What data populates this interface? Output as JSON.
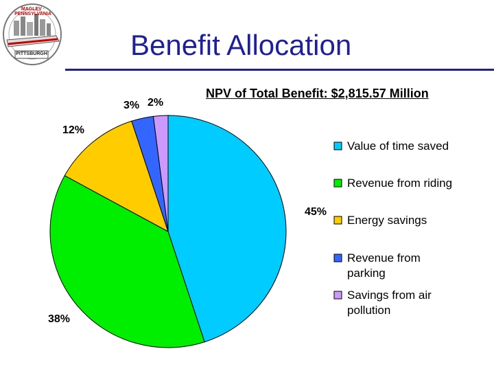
{
  "slide": {
    "title": "Benefit Allocation",
    "subtitle": "NPV of Total Benefit: $2,815.57 Million"
  },
  "logo": {
    "text_top": "MAGLEV · PENNSYLVANIA",
    "text_bottom": "PITTSBURGH"
  },
  "colors": {
    "title": "#1f1f9a",
    "rule": "#1f1f9a"
  },
  "chart_data": {
    "type": "pie",
    "legend_position": "right",
    "series": [
      {
        "name": "Value of time saved",
        "legend_lines": [
          "Value of time saved"
        ],
        "value": 45,
        "label": "45%",
        "color": "#00ccff"
      },
      {
        "name": "Revenue from riding",
        "legend_lines": [
          "Revenue from riding"
        ],
        "value": 38,
        "label": "38%",
        "color": "#00ee00"
      },
      {
        "name": "Energy savings",
        "legend_lines": [
          "Energy savings"
        ],
        "value": 12,
        "label": "12%",
        "color": "#ffcc00"
      },
      {
        "name": "Revenue from parking",
        "legend_lines": [
          "Revenue from",
          "parking"
        ],
        "value": 3,
        "label": "3%",
        "color": "#3366ff"
      },
      {
        "name": "Savings from air pollution",
        "legend_lines": [
          "Savings from air",
          "pollution"
        ],
        "value": 2,
        "label": "2%",
        "color": "#cc99ff"
      }
    ]
  }
}
